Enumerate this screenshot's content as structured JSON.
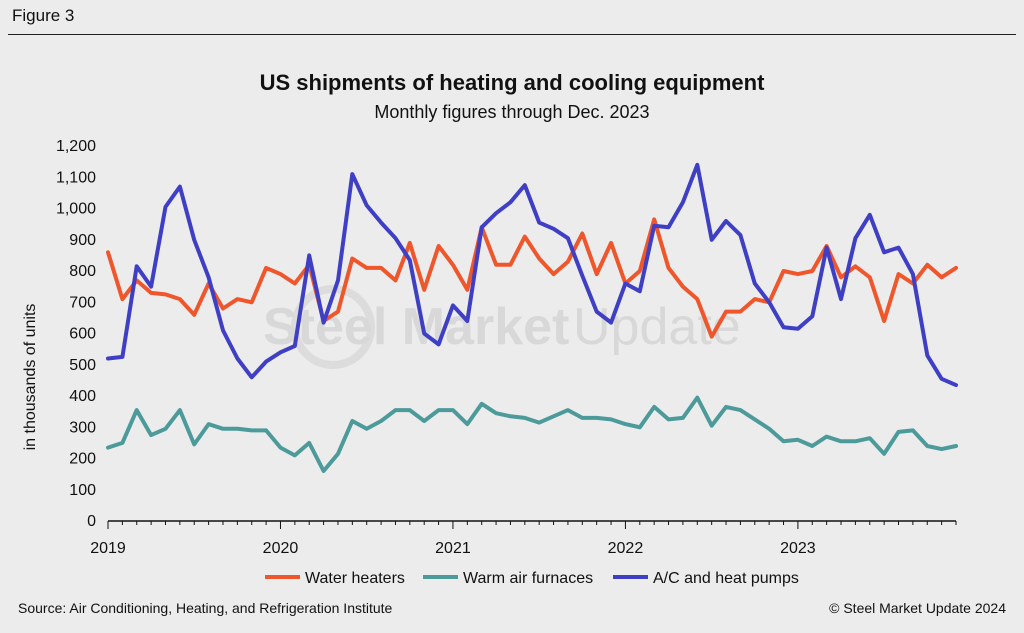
{
  "figure_label": "Figure 3",
  "source": "Source: Air Conditioning, Heating, and Refrigeration Institute",
  "copyright": "© Steel Market Update 2024",
  "watermark": {
    "text_bold": "Steel Market",
    "text_light": "Update"
  },
  "colors": {
    "water_heaters": "#f0562b",
    "furnaces": "#4c9a9a",
    "ac_pumps": "#3f3fc6"
  },
  "chart_data": {
    "type": "line",
    "title": "US shipments of heating and cooling equipment",
    "subtitle": "Monthly figures through Dec. 2023",
    "ylabel": "in thousands of units",
    "xlabel": "",
    "ylim": [
      0,
      1200
    ],
    "yticks": [
      0,
      100,
      200,
      300,
      400,
      500,
      600,
      700,
      800,
      900,
      1000,
      1100,
      1200
    ],
    "ytick_labels": [
      "0",
      "100",
      "200",
      "300",
      "400",
      "500",
      "600",
      "700",
      "800",
      "900",
      "1,000",
      "1,100",
      "1,200"
    ],
    "x_start": "2019-01",
    "x_months": 60,
    "xtick_labels": [
      "2019",
      "2020",
      "2021",
      "2022",
      "2023"
    ],
    "legend": [
      "Water heaters",
      "Warm air furnaces",
      "A/C and heat pumps"
    ],
    "legend_position": "bottom",
    "series": [
      {
        "name": "Water heaters",
        "color": "#f0562b",
        "values": [
          860,
          710,
          770,
          730,
          725,
          710,
          660,
          760,
          680,
          710,
          700,
          810,
          790,
          760,
          820,
          640,
          670,
          840,
          810,
          810,
          770,
          890,
          740,
          880,
          820,
          740,
          940,
          820,
          820,
          910,
          840,
          790,
          830,
          920,
          790,
          890,
          760,
          800,
          965,
          810,
          750,
          710,
          590,
          670,
          670,
          710,
          700,
          800,
          790,
          800,
          880,
          780,
          815,
          780,
          640,
          790,
          760,
          820,
          780,
          810
        ]
      },
      {
        "name": "Warm air furnaces",
        "color": "#4c9a9a",
        "values": [
          235,
          250,
          355,
          275,
          295,
          355,
          245,
          310,
          295,
          295,
          290,
          290,
          235,
          210,
          250,
          160,
          215,
          320,
          295,
          320,
          355,
          355,
          320,
          355,
          355,
          310,
          375,
          345,
          335,
          330,
          315,
          335,
          355,
          330,
          330,
          325,
          310,
          300,
          365,
          325,
          330,
          395,
          305,
          365,
          355,
          325,
          295,
          255,
          260,
          240,
          270,
          255,
          255,
          265,
          215,
          285,
          290,
          240,
          230,
          240
        ]
      },
      {
        "name": "A/C and heat pumps",
        "color": "#3f3fc6",
        "values": [
          520,
          525,
          815,
          750,
          1005,
          1070,
          900,
          780,
          610,
          520,
          460,
          510,
          540,
          560,
          850,
          635,
          770,
          1110,
          1010,
          955,
          905,
          835,
          600,
          565,
          690,
          640,
          940,
          985,
          1020,
          1075,
          955,
          935,
          905,
          785,
          670,
          635,
          760,
          735,
          945,
          940,
          1020,
          1140,
          900,
          960,
          915,
          760,
          700,
          620,
          615,
          655,
          875,
          710,
          905,
          980,
          860,
          875,
          790,
          530,
          455,
          435
        ]
      }
    ]
  }
}
